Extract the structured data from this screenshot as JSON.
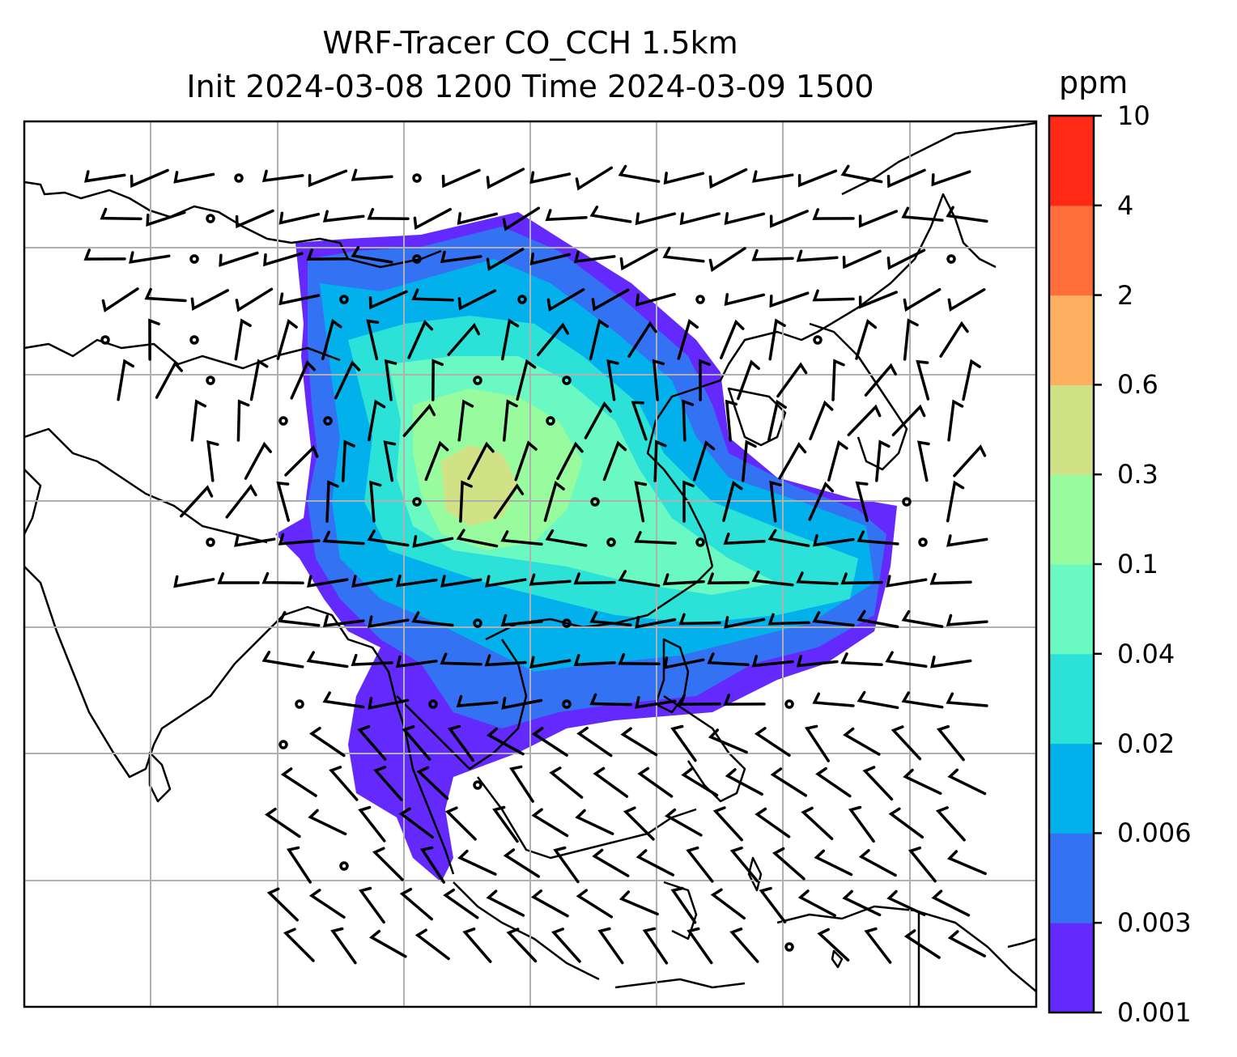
{
  "title": {
    "line1": "WRF-Tracer CO_CCH 1.5km",
    "line2": "Init 2024-03-08 1200 Time 2024-03-09 1500"
  },
  "colorbar": {
    "unit": "ppm",
    "levels": [
      "0.001",
      "0.003",
      "0.006",
      "0.02",
      "0.04",
      "0.1",
      "0.3",
      "0.6",
      "2",
      "4",
      "10"
    ],
    "colors": [
      "#6329fd",
      "#3373f3",
      "#02b1ec",
      "#2be1d8",
      "#6af8c3",
      "#98fb9d",
      "#d1e286",
      "#fdb060",
      "#ff6e3a",
      "#ff2916"
    ]
  },
  "map": {
    "projection": "lat-lon",
    "gridlines": true,
    "field": "CO_CCH tracer concentration at 1.5km",
    "overlay": "wind barbs"
  }
}
